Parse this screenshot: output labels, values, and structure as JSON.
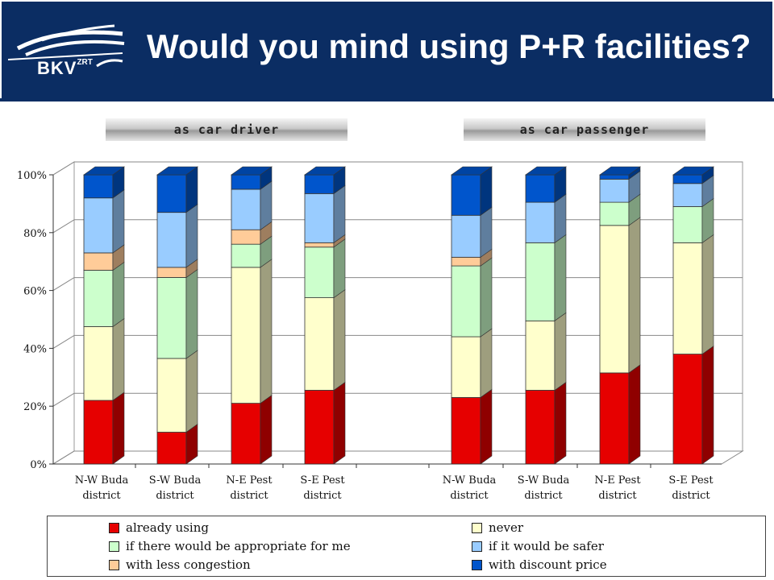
{
  "header": {
    "title": "Would you mind using P+R facilities?",
    "logo_text": "BKV",
    "logo_sup": "ZRT"
  },
  "groups": [
    {
      "label": "as car driver"
    },
    {
      "label": "as car passenger"
    }
  ],
  "colors": {
    "header_bg": "#0b2d63",
    "already_using": "#e60000",
    "never": "#ffffcc",
    "appropriate": "#ccffcc",
    "less_congestion": "#ffcc99",
    "safer": "#99ccff",
    "discount": "#0055cc"
  },
  "chart_data": {
    "type": "bar",
    "stacked": true,
    "percent": true,
    "ylim": [
      0,
      100
    ],
    "yticks": [
      "0%",
      "20%",
      "40%",
      "60%",
      "80%",
      "100%"
    ],
    "grid": true,
    "legend_position": "bottom",
    "categories": [
      [
        "N-W Buda",
        "district"
      ],
      [
        "S-W Buda",
        "district"
      ],
      [
        "N-E Pest",
        "district"
      ],
      [
        "S-E Pest",
        "district"
      ],
      [
        "N-W Buda",
        "district"
      ],
      [
        "S-W Buda",
        "district"
      ],
      [
        "N-E Pest",
        "district"
      ],
      [
        "S-E Pest",
        "district"
      ]
    ],
    "series": [
      {
        "name": "already using",
        "color": "#e60000",
        "values": [
          22,
          11,
          21,
          25.5,
          23,
          25.5,
          31.5,
          38
        ]
      },
      {
        "name": "never",
        "color": "#ffffcc",
        "values": [
          25.5,
          25.5,
          47,
          32,
          21,
          24,
          51,
          38.5
        ]
      },
      {
        "name": "if there would be appropriate for me",
        "color": "#ccffcc",
        "values": [
          19.5,
          28,
          8,
          17.5,
          24.5,
          27,
          8,
          12.5
        ]
      },
      {
        "name": "with less congestion",
        "color": "#ffcc99",
        "values": [
          6,
          3.5,
          5,
          1.5,
          3,
          0,
          0,
          0
        ]
      },
      {
        "name": "if it would be safer",
        "color": "#99ccff",
        "values": [
          19,
          19,
          14,
          17,
          14.5,
          14,
          8,
          8
        ]
      },
      {
        "name": "with discount price",
        "color": "#0055cc",
        "values": [
          8,
          13,
          5,
          6.5,
          14,
          9.5,
          1.5,
          3
        ]
      }
    ]
  },
  "legend": {
    "items": [
      {
        "label": "already using",
        "color": "#e60000"
      },
      {
        "label": "never",
        "color": "#ffffcc"
      },
      {
        "label": "if there would be appropriate for me",
        "color": "#ccffcc"
      },
      {
        "label": "if it would be safer",
        "color": "#99ccff"
      },
      {
        "label": "with less congestion",
        "color": "#ffcc99"
      },
      {
        "label": "with discount price",
        "color": "#0055cc"
      }
    ]
  }
}
